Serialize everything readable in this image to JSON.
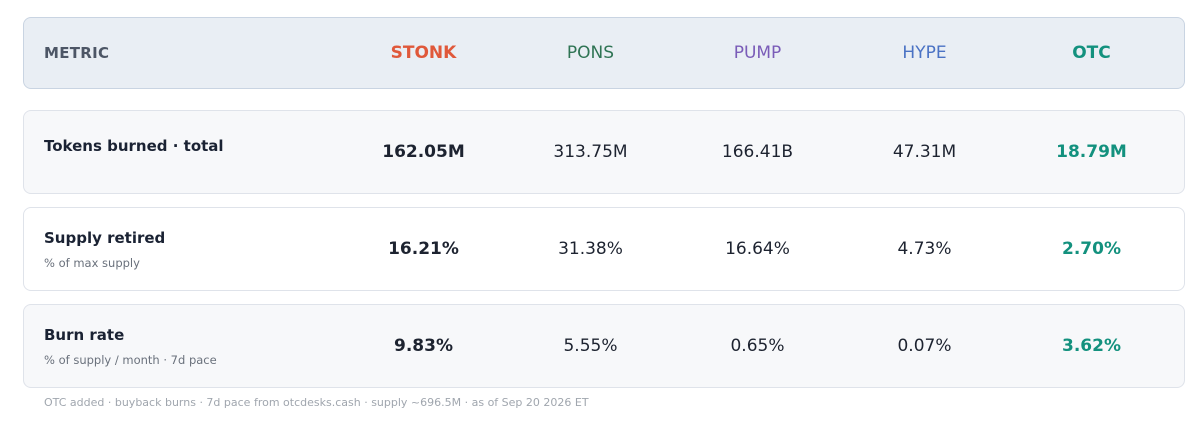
{
  "colors": {
    "STONK": "#e0583a",
    "PONS": "#2f7454",
    "PUMP": "#7a5cb8",
    "HYPE": "#4a72c4",
    "OTC": "#13917e"
  },
  "header": {
    "metric_label": "METRIC",
    "columns": [
      "STONK",
      "PONS",
      "PUMP",
      "HYPE",
      "OTC"
    ]
  },
  "rows": [
    {
      "title": "Tokens burned · total",
      "subtitle": "",
      "values": [
        "162.05M",
        "313.75M",
        "166.41B",
        "47.31M",
        "18.79M"
      ]
    },
    {
      "title": "Supply retired",
      "subtitle": "% of max supply",
      "values": [
        "16.21%",
        "31.38%",
        "16.64%",
        "4.73%",
        "2.70%"
      ]
    },
    {
      "title": "Burn rate",
      "subtitle": "% of supply / month · 7d pace",
      "values": [
        "9.83%",
        "5.55%",
        "0.65%",
        "0.07%",
        "3.62%"
      ]
    }
  ],
  "footnote": "OTC added · buyback burns · 7d pace from otcdesks.cash · supply ~696.5M · as of Sep 20 2026 ET"
}
